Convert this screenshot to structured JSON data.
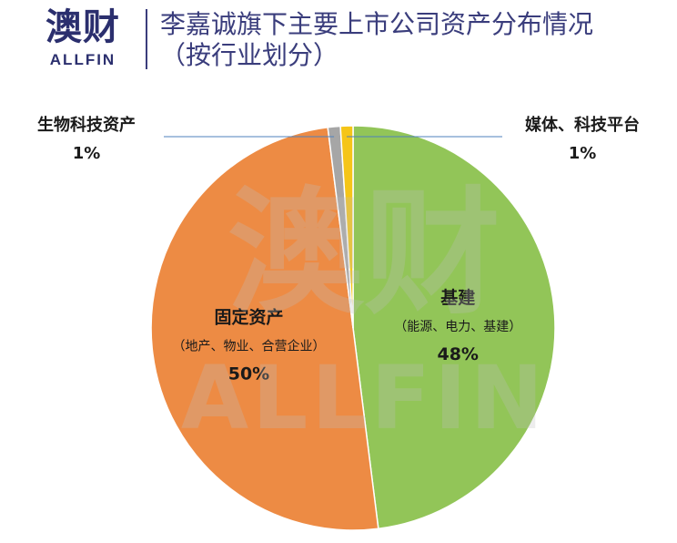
{
  "brand": {
    "name_cn": "澳财",
    "name_en": "ALLFIN"
  },
  "header": {
    "title_line1": "李嘉诚旗下主要上市公司资产分布情况",
    "title_line2": "（按行业划分）"
  },
  "watermark": {
    "cn": "澳财",
    "en": "ALLFIN"
  },
  "chart_data": {
    "type": "pie",
    "title": "李嘉诚旗下主要上市公司资产分布情况（按行业划分）",
    "slices": [
      {
        "name": "基建",
        "detail": "（能源、电力、基建）",
        "value": 48,
        "label": "48%",
        "color": "#92c558",
        "label_position": "inside"
      },
      {
        "name": "固定资产",
        "detail": "（地产、物业、合营企业）",
        "value": 50,
        "label": "50%",
        "color": "#ed8b44",
        "label_position": "inside"
      },
      {
        "name": "生物科技资产",
        "detail": "",
        "value": 1,
        "label": "1%",
        "color": "#a6a6a6",
        "label_position": "outside-left"
      },
      {
        "name": "媒体、科技平台",
        "detail": "",
        "value": 1,
        "label": "1%",
        "color": "#f5c518",
        "label_position": "outside-right"
      }
    ],
    "start": "12 o'clock",
    "direction": "clockwise",
    "legend": "none",
    "leader_line_color": "#4f81bd"
  }
}
